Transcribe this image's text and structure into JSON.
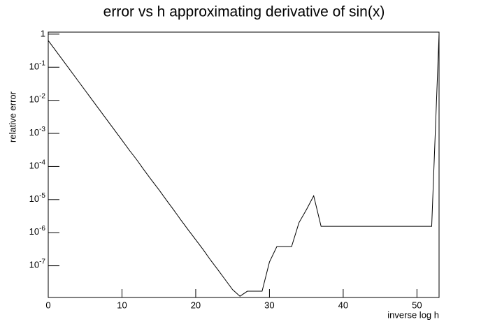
{
  "chart_data": {
    "type": "line",
    "title": "error vs h approximating derivative of sin(x)",
    "x_label": "inverse log h",
    "y_label": "relative error",
    "log_y": true,
    "grid": false,
    "x": [
      0,
      1,
      2,
      3,
      4,
      5,
      6,
      7,
      8,
      9,
      10,
      11,
      12,
      13,
      14,
      15,
      16,
      17,
      18,
      19,
      20,
      21,
      22,
      23,
      24,
      25,
      26,
      27,
      28,
      29,
      30,
      31,
      32,
      33,
      34,
      35,
      36,
      37,
      38,
      39,
      40,
      41,
      42,
      43,
      44,
      45,
      46,
      47,
      48,
      49,
      50,
      51,
      52,
      53
    ],
    "series": [
      {
        "color": "#000000",
        "values": [
          0.64,
          0.32,
          0.16,
          0.08,
          0.04,
          0.02,
          0.01,
          0.005,
          0.0025,
          0.00125,
          0.000625,
          0.00031,
          0.00016,
          7.8e-05,
          3.9e-05,
          2e-05,
          9.8e-06,
          4.9e-06,
          2.4e-06,
          1.2e-06,
          6.1e-07,
          3.1e-07,
          1.5e-07,
          7.6e-08,
          3.8e-08,
          1.9e-08,
          1.2e-08,
          1.7e-08,
          1.7e-08,
          1.7e-08,
          1.3e-07,
          3.8e-07,
          3.8e-07,
          3.8e-07,
          2e-06,
          4.9e-06,
          1.3e-05,
          1.55e-06,
          1.55e-06,
          1.55e-06,
          1.55e-06,
          1.55e-06,
          1.55e-06,
          1.55e-06,
          1.55e-06,
          1.55e-06,
          1.55e-06,
          1.55e-06,
          1.55e-06,
          1.55e-06,
          1.55e-06,
          1.55e-06,
          1.55e-06,
          1
        ]
      }
    ],
    "xlim": [
      0,
      53
    ],
    "xticks": [
      0,
      10,
      20,
      30,
      40,
      50
    ],
    "ylim": [
      1.1e-08,
      1.15
    ],
    "yticks": [
      1,
      {
        "value": 0.1,
        "label": "10-1"
      },
      {
        "value": 0.01,
        "label": "10-2"
      },
      {
        "value": 0.001,
        "label": "10-3"
      },
      {
        "value": 0.0001,
        "label": "10-4"
      },
      {
        "value": 1e-05,
        "label": "10-5"
      },
      {
        "value": 1e-06,
        "label": "10-6"
      },
      {
        "value": 1e-07,
        "label": "10-7"
      }
    ]
  }
}
